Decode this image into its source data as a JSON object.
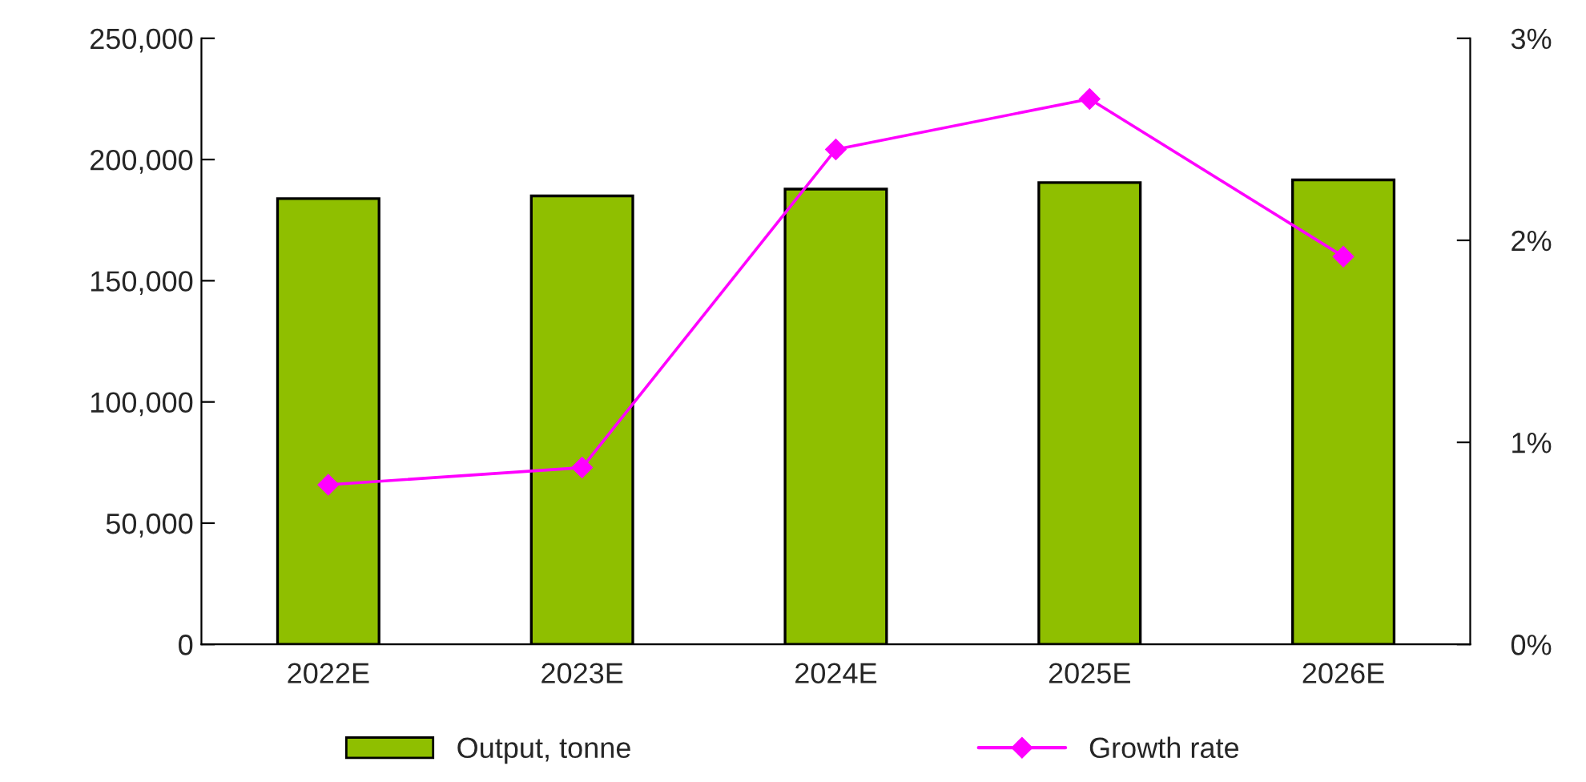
{
  "chart_data": {
    "type": "bar",
    "categories": [
      "2022E",
      "2023E",
      "2024E",
      "2025E",
      "2026E"
    ],
    "series": [
      {
        "name": "Output, tonne",
        "color": "#8fbf00",
        "values": [
          183900,
          185000,
          187800,
          190500,
          191600
        ]
      },
      {
        "name": "Growth rate",
        "type": "line",
        "axis": "y2",
        "color": "#ff00ff",
        "marker": "diamond",
        "values": [
          0.79,
          0.875,
          2.45,
          2.7,
          1.92
        ]
      }
    ],
    "ylim": [
      0,
      250000
    ],
    "yticks": [
      {
        "value": 0,
        "label": "0"
      },
      {
        "value": 50000,
        "label": "50,000"
      },
      {
        "value": 100000,
        "label": "100,000"
      },
      {
        "value": 150000,
        "label": "150,000"
      },
      {
        "value": 200000,
        "label": "200,000"
      },
      {
        "value": 250000,
        "label": "250,000"
      }
    ],
    "y2lim": [
      0,
      3
    ],
    "y2ticks": [
      {
        "value": 0,
        "label": "0%"
      },
      {
        "value": 1,
        "label": "1%"
      },
      {
        "value": 2,
        "label": "2%"
      },
      {
        "value": 3,
        "label": "3%"
      }
    ],
    "grid": false,
    "legend": "bottom"
  }
}
